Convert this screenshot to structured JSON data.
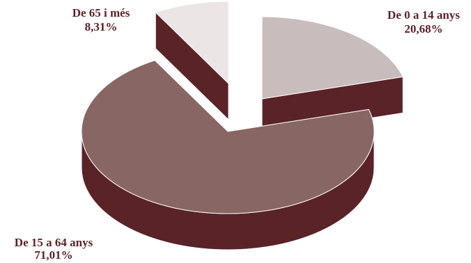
{
  "chart_data": {
    "type": "pie",
    "title": "",
    "categories": [
      "De 0 a 14 anys",
      "De 15 a 64 anys",
      "De 65 i més"
    ],
    "values": [
      20.68,
      71.01,
      8.31
    ],
    "value_labels": [
      "20,68%",
      "71,01%",
      "8,31%"
    ],
    "colors": [
      "#c9bcbc",
      "#876664",
      "#ebe5e5"
    ],
    "side_color": "#5a2327",
    "label_color": "#5a2327",
    "legend": "none",
    "style": "3d-exploded"
  }
}
